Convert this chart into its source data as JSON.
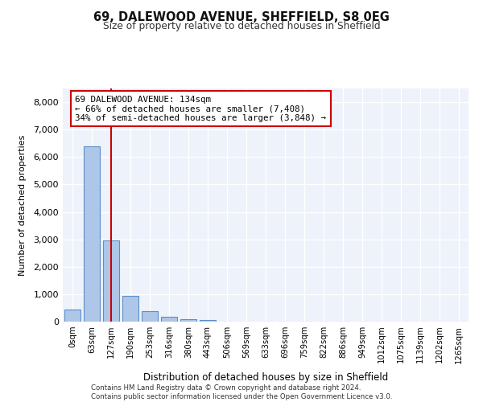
{
  "title1": "69, DALEWOOD AVENUE, SHEFFIELD, S8 0EG",
  "title2": "Size of property relative to detached houses in Sheffield",
  "xlabel": "Distribution of detached houses by size in Sheffield",
  "ylabel": "Number of detached properties",
  "footnote": "Contains HM Land Registry data © Crown copyright and database right 2024.\nContains public sector information licensed under the Open Government Licence v3.0.",
  "bin_labels": [
    "0sqm",
    "63sqm",
    "127sqm",
    "190sqm",
    "253sqm",
    "316sqm",
    "380sqm",
    "443sqm",
    "506sqm",
    "569sqm",
    "633sqm",
    "696sqm",
    "759sqm",
    "822sqm",
    "886sqm",
    "949sqm",
    "1012sqm",
    "1075sqm",
    "1139sqm",
    "1202sqm",
    "1265sqm"
  ],
  "bar_values": [
    430,
    6400,
    2950,
    950,
    380,
    170,
    80,
    50,
    0,
    0,
    0,
    0,
    0,
    0,
    0,
    0,
    0,
    0,
    0,
    0,
    0
  ],
  "bar_color": "#aec6e8",
  "bar_edge_color": "#5b8fc9",
  "pct_smaller": 66,
  "n_smaller": 7408,
  "pct_larger": 34,
  "n_larger": 3848,
  "vline_bin": 2,
  "annotation_box_color": "#cc0000",
  "bg_color": "#eef2fa",
  "grid_color": "#ffffff",
  "ylim": [
    0,
    8500
  ],
  "yticks": [
    0,
    1000,
    2000,
    3000,
    4000,
    5000,
    6000,
    7000,
    8000
  ]
}
